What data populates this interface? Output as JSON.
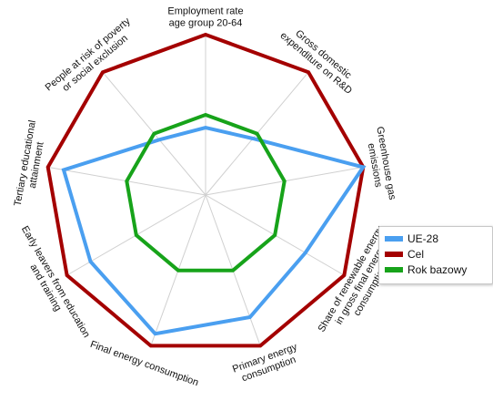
{
  "chart_data": {
    "type": "radar",
    "axes": [
      [
        "Employment rate",
        "age group 20-64"
      ],
      [
        "Gross domestic",
        "expenditure on R&D"
      ],
      [
        "Greenhouse gas",
        "emissions"
      ],
      [
        "Share of renewable energy",
        "in gross final energy",
        "consumption"
      ],
      [
        "Primary energy",
        "consumption"
      ],
      [
        "Final energy consumption"
      ],
      [
        "Early leavers from education",
        "and training"
      ],
      [
        "Tertiary educational",
        "attainment"
      ],
      [
        "People at risk of poverty",
        "or social exclusion"
      ]
    ],
    "range": [
      0,
      1
    ],
    "grid": true,
    "legend_position": "right",
    "series": [
      {
        "name": "UE-28",
        "color": "#4a9ff0",
        "values": [
          0.42,
          0.46,
          1.0,
          0.72,
          0.81,
          0.92,
          0.83,
          0.9,
          0.45
        ]
      },
      {
        "name": "Cel",
        "color": "#a40000",
        "values": [
          1.0,
          1.0,
          1.0,
          1.0,
          1.0,
          1.0,
          1.0,
          1.0,
          1.0
        ]
      },
      {
        "name": "Rok bazowy",
        "color": "#17a31a",
        "values": [
          0.5,
          0.5,
          0.5,
          0.5,
          0.5,
          0.5,
          0.5,
          0.5,
          0.5
        ]
      }
    ]
  }
}
